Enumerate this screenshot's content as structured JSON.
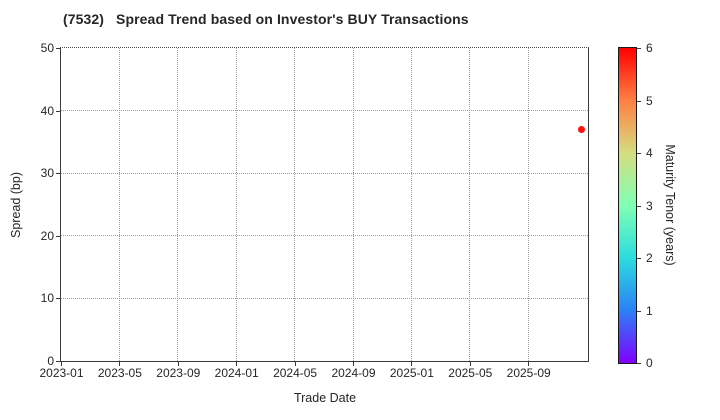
{
  "figure": {
    "background": "#ffffff"
  },
  "chart_data": {
    "type": "scatter",
    "title": "(7532)   Spread Trend based on Investor's BUY Transactions",
    "xlabel": "Trade Date",
    "ylabel": "Spread (bp)",
    "x_tick_labels": [
      "2023-01",
      "2023-05",
      "2023-09",
      "2024-01",
      "2024-05",
      "2024-09",
      "2025-01",
      "2025-05",
      "2025-09"
    ],
    "y_ticks": [
      0,
      10,
      20,
      30,
      40,
      50
    ],
    "ylim": [
      0,
      50
    ],
    "xlim": [
      "2023-01",
      "2026-01"
    ],
    "grid": true,
    "points": [
      {
        "date": "2025-12-20",
        "spread_bp": 37,
        "maturity_tenor_years": 6,
        "color": "#ff1208"
      }
    ],
    "colorbar": {
      "label": "Maturity Tenor (years)",
      "min": 0,
      "max": 6,
      "ticks": [
        0,
        1,
        2,
        3,
        4,
        5,
        6
      ],
      "colormap": "rainbow",
      "gradient_stops": [
        "#8000ff",
        "#2b80f6",
        "#2bdddd",
        "#80ffb5",
        "#d5dd80",
        "#ff8042",
        "#ff0000"
      ]
    }
  },
  "colors": {
    "text": "#262626",
    "spine": "#3a3a3a",
    "grid": "#9e9e9e",
    "point": "#ff1208",
    "background": "#ffffff"
  }
}
